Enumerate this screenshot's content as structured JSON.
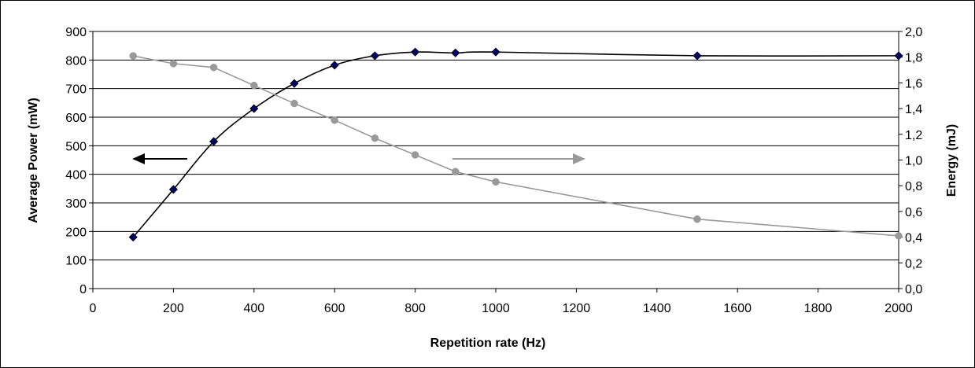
{
  "chart_data": {
    "type": "line",
    "title": "",
    "xlabel": "Repetition rate (Hz)",
    "ylabel": "Average Power (mW)",
    "y2label": "Energy (mJ)",
    "xlim": [
      0,
      2000
    ],
    "ylim": [
      0,
      900
    ],
    "y2lim": [
      0,
      2.0
    ],
    "x_ticks": [
      "0",
      "200",
      "400",
      "600",
      "800",
      "1000",
      "1200",
      "1400",
      "1600",
      "1800",
      "2000"
    ],
    "y_ticks": [
      "0",
      "100",
      "200",
      "300",
      "400",
      "500",
      "600",
      "700",
      "800",
      "900"
    ],
    "y2_ticks": [
      "0,0",
      "0,2",
      "0,4",
      "0,6",
      "0,8",
      "1,0",
      "1,2",
      "1,4",
      "1,6",
      "1,8",
      "2,0"
    ],
    "grid": "horizontal",
    "series": [
      {
        "axis": "left",
        "marker": "diamond",
        "color": "#000066",
        "line_color": "#000000",
        "smooth": true,
        "x": [
          100,
          200,
          300,
          400,
          500,
          600,
          700,
          800,
          900,
          1000,
          1500,
          2000
        ],
        "values": [
          180,
          347,
          515,
          630,
          718,
          782,
          815,
          828,
          825,
          828,
          815,
          815
        ]
      },
      {
        "axis": "right",
        "marker": "circle",
        "color": "#999999",
        "line_color": "#999999",
        "smooth": false,
        "x": [
          100,
          200,
          300,
          400,
          500,
          600,
          700,
          800,
          900,
          1000,
          1500,
          2000
        ],
        "values": [
          1.81,
          1.75,
          1.72,
          1.58,
          1.44,
          1.31,
          1.17,
          1.04,
          0.91,
          0.83,
          0.54,
          0.41
        ]
      }
    ],
    "annotations": [
      {
        "type": "arrow",
        "direction": "left",
        "color": "#000000",
        "series": 0
      },
      {
        "type": "arrow",
        "direction": "right",
        "color": "#999999",
        "series": 1
      }
    ]
  }
}
